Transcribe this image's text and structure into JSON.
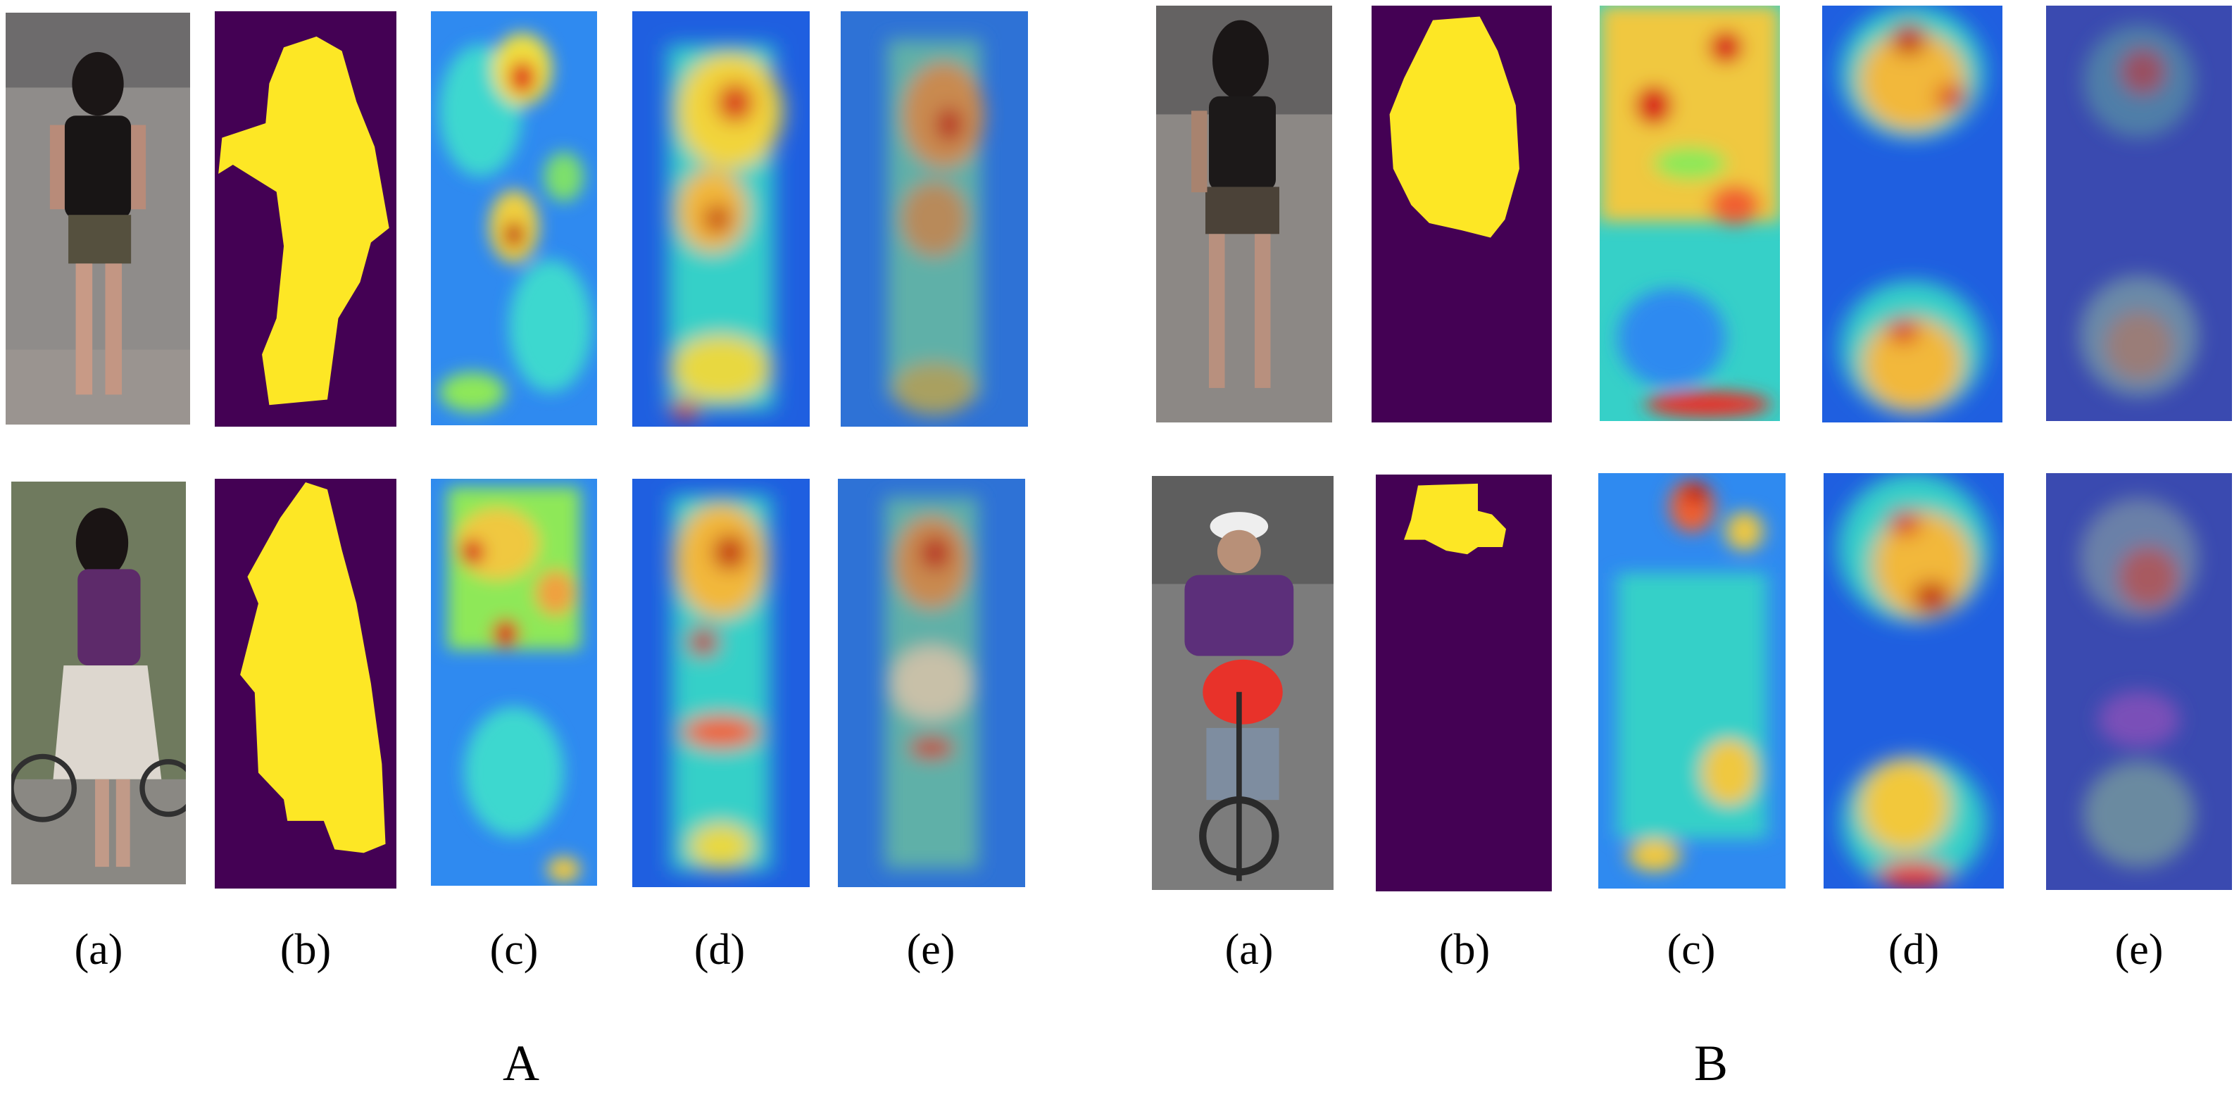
{
  "panel_labels": {
    "A": [
      "(a)",
      "(b)",
      "(c)",
      "(d)",
      "(e)"
    ],
    "B": [
      "(a)",
      "(b)",
      "(c)",
      "(d)",
      "(e)"
    ]
  },
  "group_labels": {
    "A": "A",
    "B": "B"
  },
  "colors": {
    "mask_background": "#440154",
    "mask_foreground": "#fde725",
    "heatmap_low": "#1f5fe0",
    "heatmap_mid": "#36d0c8",
    "heatmap_high": "#d8201a",
    "heatmap_peak": "#8b0000"
  }
}
